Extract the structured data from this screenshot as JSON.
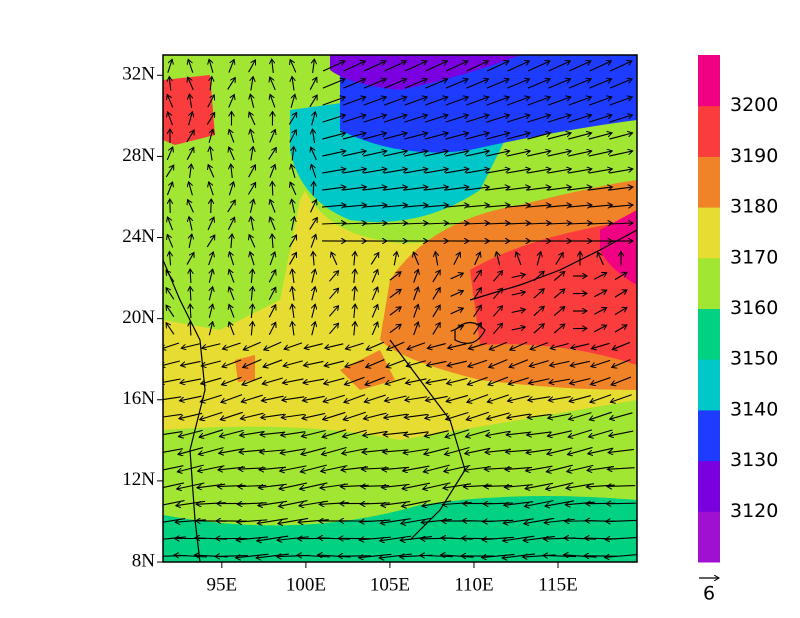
{
  "map": {
    "xlim": [
      91.5,
      119.7
    ],
    "ylim": [
      8,
      33
    ],
    "xticks": [
      {
        "value": 95,
        "label": "95E"
      },
      {
        "value": 100,
        "label": "100E"
      },
      {
        "value": 105,
        "label": "105E"
      },
      {
        "value": 110,
        "label": "110E"
      },
      {
        "value": 115,
        "label": "115E"
      }
    ],
    "yticks": [
      {
        "value": 8,
        "label": "8N"
      },
      {
        "value": 12,
        "label": "12N"
      },
      {
        "value": 16,
        "label": "16N"
      },
      {
        "value": 20,
        "label": "20N"
      },
      {
        "value": 24,
        "label": "24N"
      },
      {
        "value": 28,
        "label": "28N"
      },
      {
        "value": 32,
        "label": "32N"
      }
    ]
  },
  "colorbar": {
    "ticks": [
      3120,
      3130,
      3140,
      3150,
      3160,
      3170,
      3180,
      3190,
      3200
    ],
    "colors": [
      "#a010d0",
      "#7a00e0",
      "#1e3cff",
      "#00c8c8",
      "#00d282",
      "#a0e632",
      "#e6dc32",
      "#f08228",
      "#fa3c3c",
      "#f00082"
    ]
  },
  "reference_vector": 6
}
